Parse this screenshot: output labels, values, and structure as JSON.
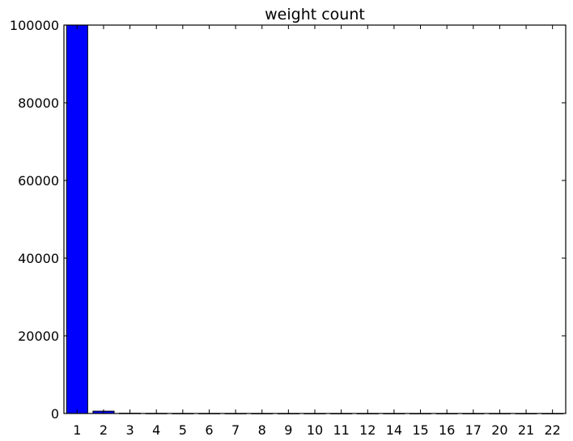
{
  "chart_data": {
    "type": "bar",
    "title": "weight count",
    "xlabel": "",
    "ylabel": "",
    "categories": [
      "1",
      "2",
      "3",
      "4",
      "5",
      "6",
      "7",
      "8",
      "9",
      "10",
      "11",
      "12",
      "14",
      "15",
      "16",
      "17",
      "20",
      "21",
      "22"
    ],
    "values": [
      100000,
      600,
      60,
      30,
      15,
      10,
      8,
      5,
      4,
      3,
      3,
      2,
      2,
      1,
      1,
      1,
      1,
      1,
      1
    ],
    "ylim": [
      0,
      100000
    ],
    "yticks": [
      0,
      20000,
      40000,
      60000,
      80000,
      100000
    ],
    "grid": false,
    "legend": "none",
    "bar_color": "#0000ff",
    "edge_color": "#000000"
  }
}
